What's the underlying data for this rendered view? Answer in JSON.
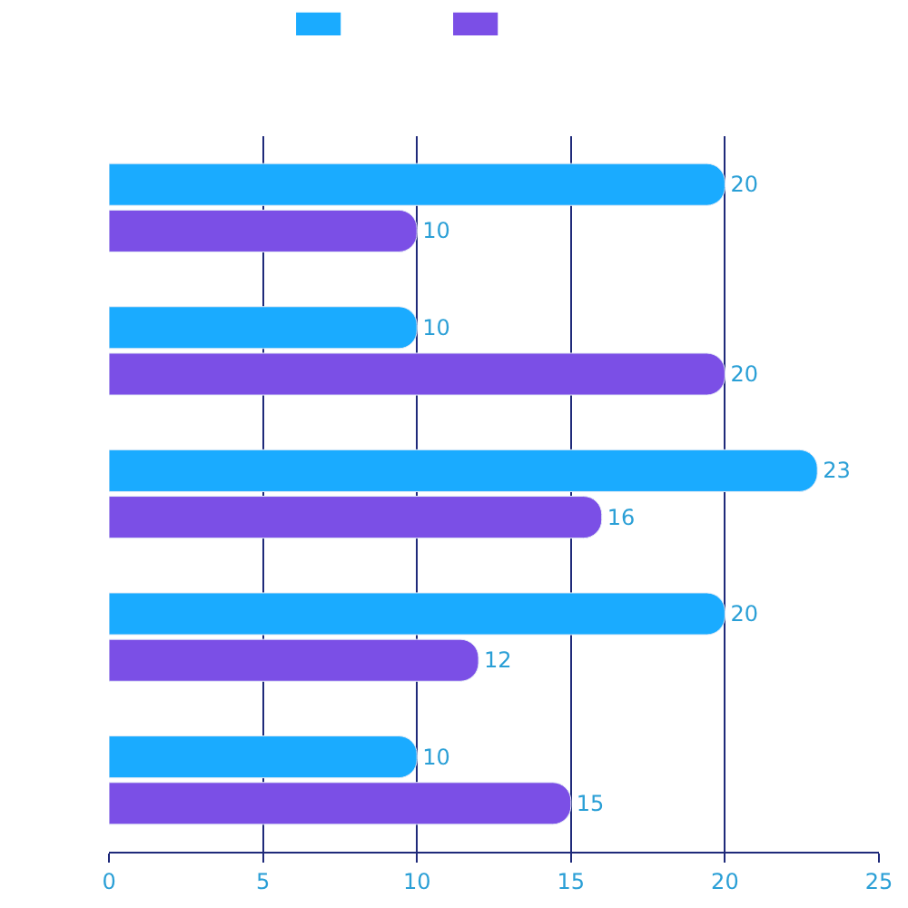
{
  "chart_data": {
    "type": "bar",
    "orientation": "horizontal",
    "categories": [
      null,
      null,
      null,
      null,
      null
    ],
    "series": [
      {
        "color": "#1aabff",
        "values": [
          20,
          10,
          23,
          20,
          10
        ]
      },
      {
        "color": "#7b4fe6",
        "values": [
          10,
          20,
          16,
          12,
          15
        ]
      }
    ],
    "xlim": [
      0,
      25
    ],
    "xticks": [
      0,
      5,
      10,
      15,
      20,
      25
    ],
    "grid": "x",
    "data_labels": true
  }
}
